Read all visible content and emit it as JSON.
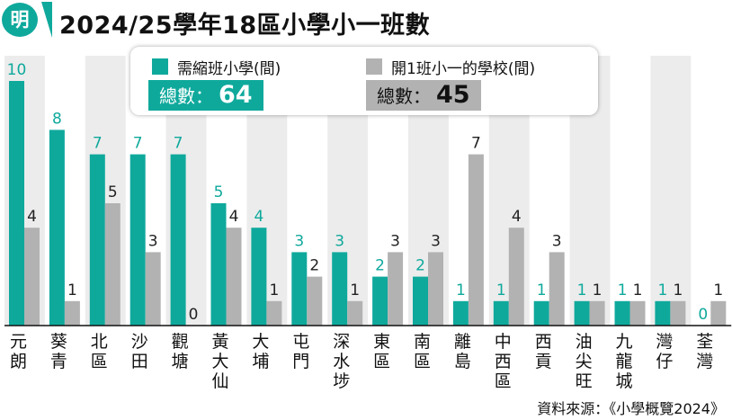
{
  "header": {
    "logo_text": "明",
    "title": "2024/25學年18區小學小一班數"
  },
  "colors": {
    "series_a": "#0fa99c",
    "series_b": "#b2b2b2",
    "stripe": "#ececec",
    "text_teal": "#0fa99c"
  },
  "legend": {
    "a_label": "需縮班小學(間)",
    "b_label": "開1班小一的學校(間)",
    "a_total_label": "總數：",
    "a_total_value": "64",
    "b_total_label": "總數：",
    "b_total_value": "45"
  },
  "source": "資料來源：《小學概覽2024》",
  "chart_data": {
    "type": "bar",
    "categories": [
      "元朗",
      "葵青",
      "北區",
      "沙田",
      "觀塘",
      "黃大仙",
      "大埔",
      "屯門",
      "深水埗",
      "東區",
      "南區",
      "離島",
      "中西區",
      "西貢",
      "油尖旺",
      "九龍城",
      "灣仔",
      "荃灣"
    ],
    "series": [
      {
        "name": "需縮班小學(間)",
        "values": [
          10,
          8,
          7,
          7,
          7,
          5,
          4,
          3,
          3,
          2,
          2,
          1,
          1,
          1,
          1,
          1,
          1,
          0
        ]
      },
      {
        "name": "開1班小一的學校(間)",
        "values": [
          4,
          1,
          5,
          3,
          0,
          4,
          1,
          2,
          1,
          3,
          3,
          7,
          4,
          3,
          1,
          1,
          1,
          1
        ]
      }
    ],
    "ylim": [
      0,
      10
    ],
    "grid": false,
    "legend_position": "top-center"
  }
}
